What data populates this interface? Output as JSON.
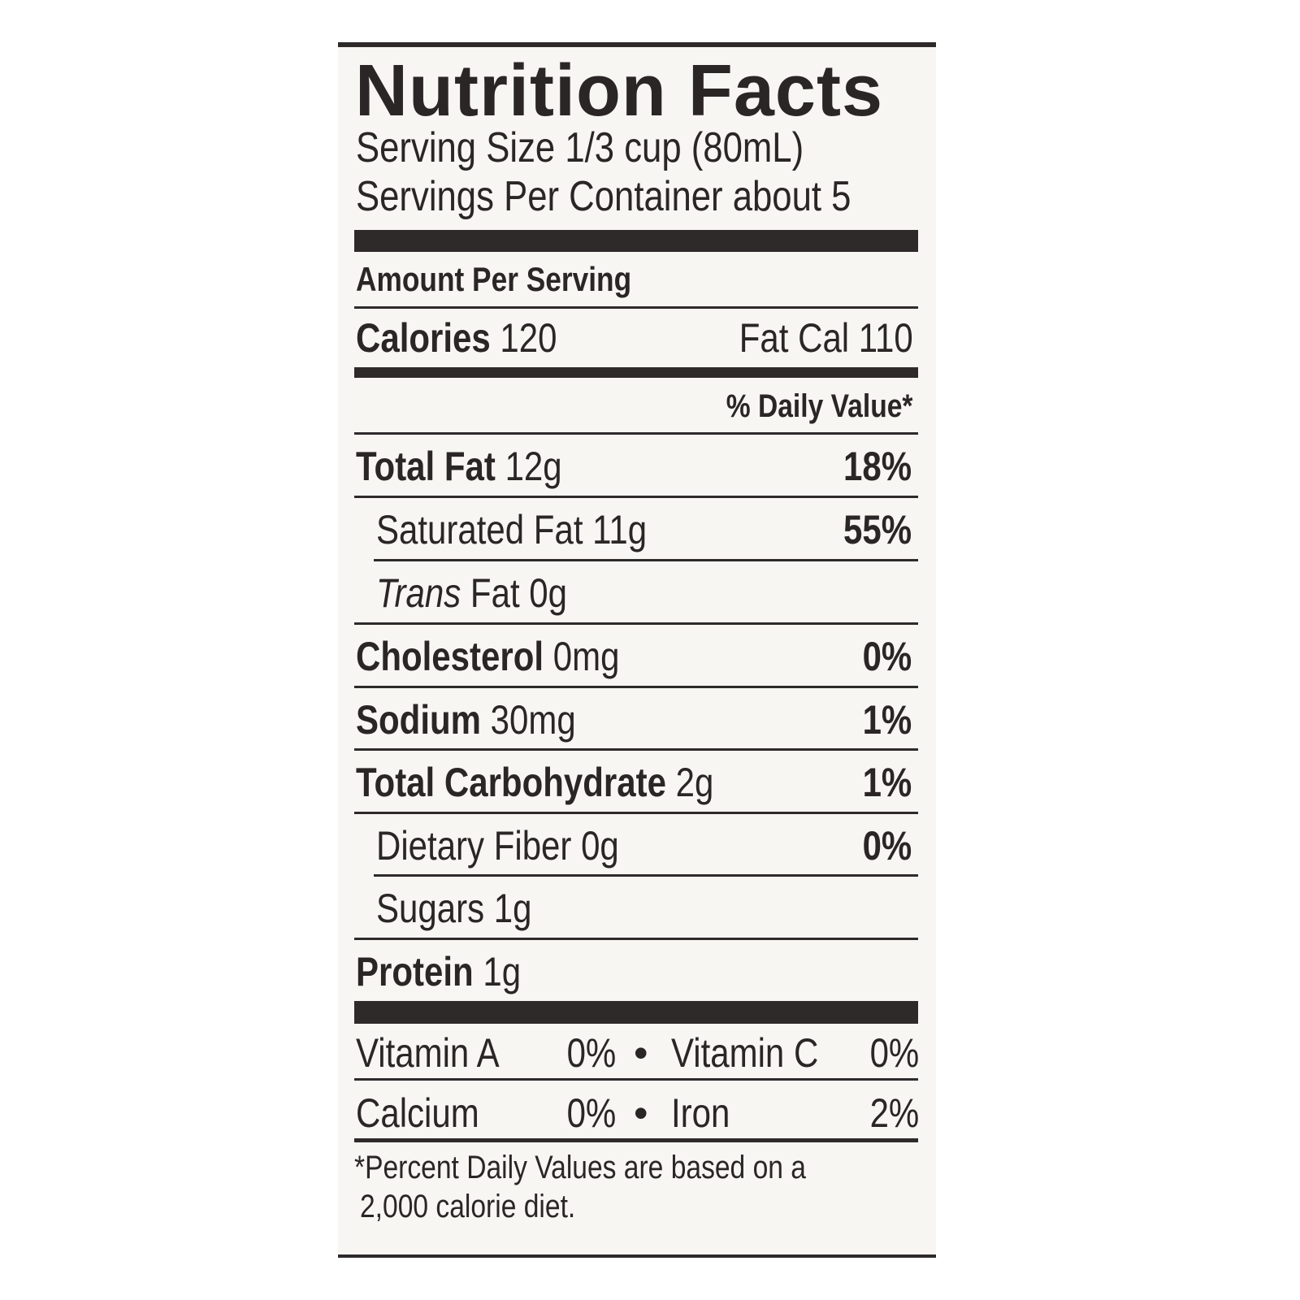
{
  "title": "Nutrition Facts",
  "serving_size": "Serving Size 1/3 cup (80mL)",
  "servings_per_container": "Servings Per Container about 5",
  "amount_per_serving": "Amount Per Serving",
  "calories": {
    "label": "Calories",
    "value": "120",
    "fat_cal": "Fat Cal 110"
  },
  "daily_value_header": "% Daily Value*",
  "nutrients": [
    {
      "label": "Total Fat",
      "amount": "12g",
      "dv": "18%"
    },
    {
      "label": "Saturated Fat",
      "amount": "11g",
      "dv": "55%"
    },
    {
      "label": "Trans",
      "label_rest": "Fat",
      "amount": "0g",
      "dv": ""
    },
    {
      "label": "Cholesterol",
      "amount": "0mg",
      "dv": "0%"
    },
    {
      "label": "Sodium",
      "amount": "30mg",
      "dv": "1%"
    },
    {
      "label": "Total Carbohydrate",
      "amount": "2g",
      "dv": "1%"
    },
    {
      "label": "Dietary Fiber",
      "amount": "0g",
      "dv": "0%"
    },
    {
      "label": "Sugars",
      "amount": "1g",
      "dv": ""
    },
    {
      "label": "Protein",
      "amount": "1g",
      "dv": ""
    }
  ],
  "vitamins": [
    {
      "label": "Vitamin A",
      "dv": "0%",
      "label2": "Vitamin C",
      "dv2": "0%"
    },
    {
      "label": "Calcium",
      "dv": "0%",
      "label2": "Iron",
      "dv2": "2%"
    }
  ],
  "bullet": "•",
  "footnote": [
    "*Percent Daily Values are based on a",
    "2,000 calorie diet."
  ]
}
